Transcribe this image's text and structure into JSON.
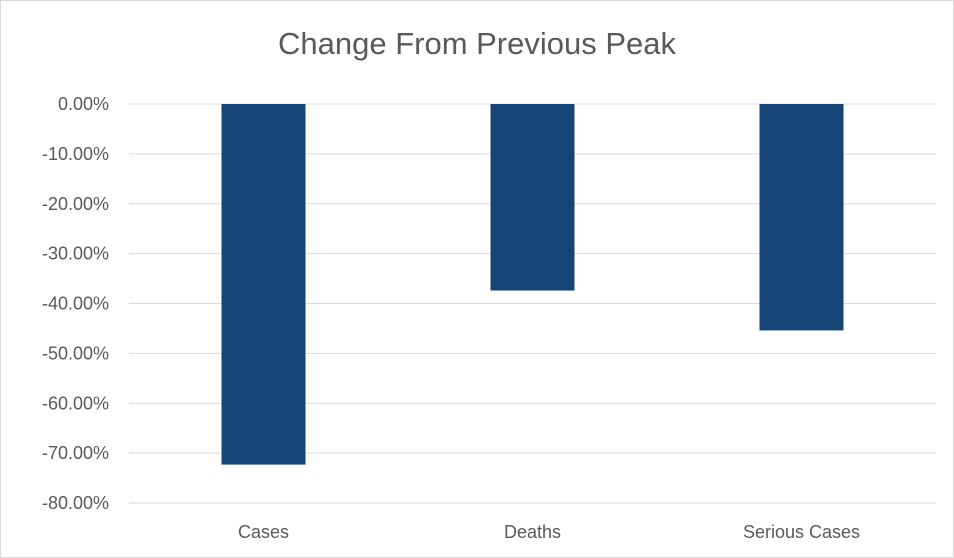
{
  "chart_data": {
    "type": "bar",
    "title": "Change From Previous Peak",
    "xlabel": "",
    "ylabel": "",
    "categories": [
      "Cases",
      "Deaths",
      "Serious Cases"
    ],
    "values": [
      -72.3,
      -37.4,
      -45.4
    ],
    "ylim": [
      -80,
      0
    ],
    "yticks": [
      0,
      -10,
      -20,
      -30,
      -40,
      -50,
      -60,
      -70,
      -80
    ],
    "ytick_labels": [
      "0.00%",
      "-10.00%",
      "-20.00%",
      "-30.00%",
      "-40.00%",
      "-50.00%",
      "-60.00%",
      "-70.00%",
      "-80.00%"
    ],
    "grid": true,
    "legend": "none",
    "bar_color": "#154577",
    "grid_color": "#d9d9d9",
    "text_color": "#595959"
  }
}
